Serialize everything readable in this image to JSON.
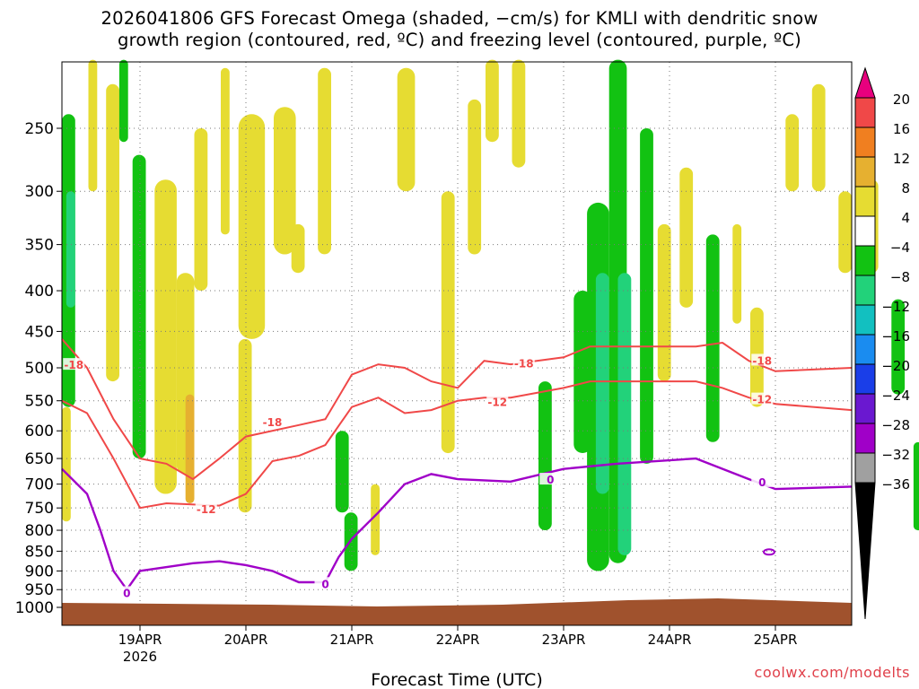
{
  "chart_data": {
    "type": "heatmap",
    "title_line1": "2026041806 GFS Forecast Omega (shaded, −cm/s) for KMLI with dendritic snow",
    "title_line2": "growth region (contoured, red, ºC) and freezing level (contoured, purple, ºC)",
    "xlabel": "Forecast Time (UTC)",
    "ylabel": "",
    "x_ticks": [
      "19APR",
      "20APR",
      "21APR",
      "22APR",
      "23APR",
      "24APR",
      "25APR"
    ],
    "x_year_label": "2026",
    "xlim": [
      "2026-04-18T06",
      "2026-04-25T18"
    ],
    "y_ticks": [
      250,
      300,
      350,
      400,
      450,
      500,
      550,
      600,
      650,
      700,
      750,
      800,
      850,
      900,
      950,
      1000
    ],
    "ylim": [
      1015,
      200
    ],
    "y_scale": "log-pressure",
    "grid": true,
    "colorbar": {
      "levels": [
        "20",
        "16",
        "12",
        "8",
        "4",
        "−4",
        "−8",
        "−12",
        "−16",
        "−20",
        "−24",
        "−28",
        "−32",
        "−36"
      ],
      "colors": [
        "#e8007e",
        "#f04848",
        "#f07f20",
        "#e6b030",
        "#e6dc32",
        "#ffffff",
        "#12c212",
        "#22d27a",
        "#12c0c0",
        "#1a8cf0",
        "#1a3ee8",
        "#6a18d0",
        "#a000c8",
        "#a0a0a0",
        "#000000"
      ]
    },
    "contours": [
      {
        "name": "-18",
        "color": "#f04848",
        "points": [
          [
            "18APR06",
            460
          ],
          [
            "18APR12",
            500
          ],
          [
            "18APR18",
            580
          ],
          [
            "19APR00",
            650
          ],
          [
            "19APR06",
            660
          ],
          [
            "19APR12",
            690
          ],
          [
            "19APR18",
            650
          ],
          [
            "20APR00",
            610
          ],
          [
            "20APR12",
            590
          ],
          [
            "20APR18",
            580
          ],
          [
            "21APR00",
            510
          ],
          [
            "21APR06",
            495
          ],
          [
            "21APR12",
            500
          ],
          [
            "21APR18",
            520
          ],
          [
            "22APR00",
            530
          ],
          [
            "22APR06",
            490
          ],
          [
            "22APR12",
            495
          ],
          [
            "23APR00",
            485
          ],
          [
            "23APR06",
            470
          ],
          [
            "24APR06",
            470
          ],
          [
            "24APR12",
            465
          ],
          [
            "24APR18",
            490
          ],
          [
            "25APR00",
            505
          ],
          [
            "25APR18",
            500
          ]
        ]
      },
      {
        "name": "-12",
        "color": "#f04848",
        "points": [
          [
            "18APR06",
            550
          ],
          [
            "18APR12",
            570
          ],
          [
            "18APR18",
            650
          ],
          [
            "19APR00",
            750
          ],
          [
            "19APR06",
            740
          ],
          [
            "19APR18",
            745
          ],
          [
            "20APR00",
            720
          ],
          [
            "20APR06",
            655
          ],
          [
            "20APR12",
            645
          ],
          [
            "20APR18",
            625
          ],
          [
            "21APR00",
            560
          ],
          [
            "21APR06",
            545
          ],
          [
            "21APR12",
            570
          ],
          [
            "21APR18",
            565
          ],
          [
            "22APR00",
            550
          ],
          [
            "22APR06",
            545
          ],
          [
            "22APR12",
            545
          ],
          [
            "23APR00",
            530
          ],
          [
            "23APR06",
            520
          ],
          [
            "24APR06",
            520
          ],
          [
            "24APR12",
            530
          ],
          [
            "24APR18",
            545
          ],
          [
            "25APR00",
            555
          ],
          [
            "25APR18",
            565
          ]
        ]
      },
      {
        "name": "0",
        "color": "#a000c8",
        "points": [
          [
            "18APR06",
            670
          ],
          [
            "18APR12",
            720
          ],
          [
            "18APR15",
            800
          ],
          [
            "18APR18",
            900
          ],
          [
            "18APR21",
            950
          ],
          [
            "19APR00",
            900
          ],
          [
            "19APR12",
            880
          ],
          [
            "19APR18",
            875
          ],
          [
            "20APR00",
            885
          ],
          [
            "20APR06",
            900
          ],
          [
            "20APR12",
            930
          ],
          [
            "20APR18",
            930
          ],
          [
            "20APR21",
            865
          ],
          [
            "21APR00",
            820
          ],
          [
            "21APR06",
            760
          ],
          [
            "21APR12",
            700
          ],
          [
            "21APR18",
            680
          ],
          [
            "22APR00",
            690
          ],
          [
            "22APR12",
            695
          ],
          [
            "23APR00",
            670
          ],
          [
            "23APR12",
            660
          ],
          [
            "24APR06",
            650
          ],
          [
            "24APR18",
            690
          ],
          [
            "25APR00",
            710
          ],
          [
            "25APR18",
            705
          ]
        ]
      }
    ],
    "contour_labels": [
      "-18",
      "-18",
      "-18",
      "-18",
      "-12",
      "-12",
      "-12",
      "0",
      "0",
      "0",
      "0"
    ],
    "watermark": "coolwx.com/modelts"
  }
}
